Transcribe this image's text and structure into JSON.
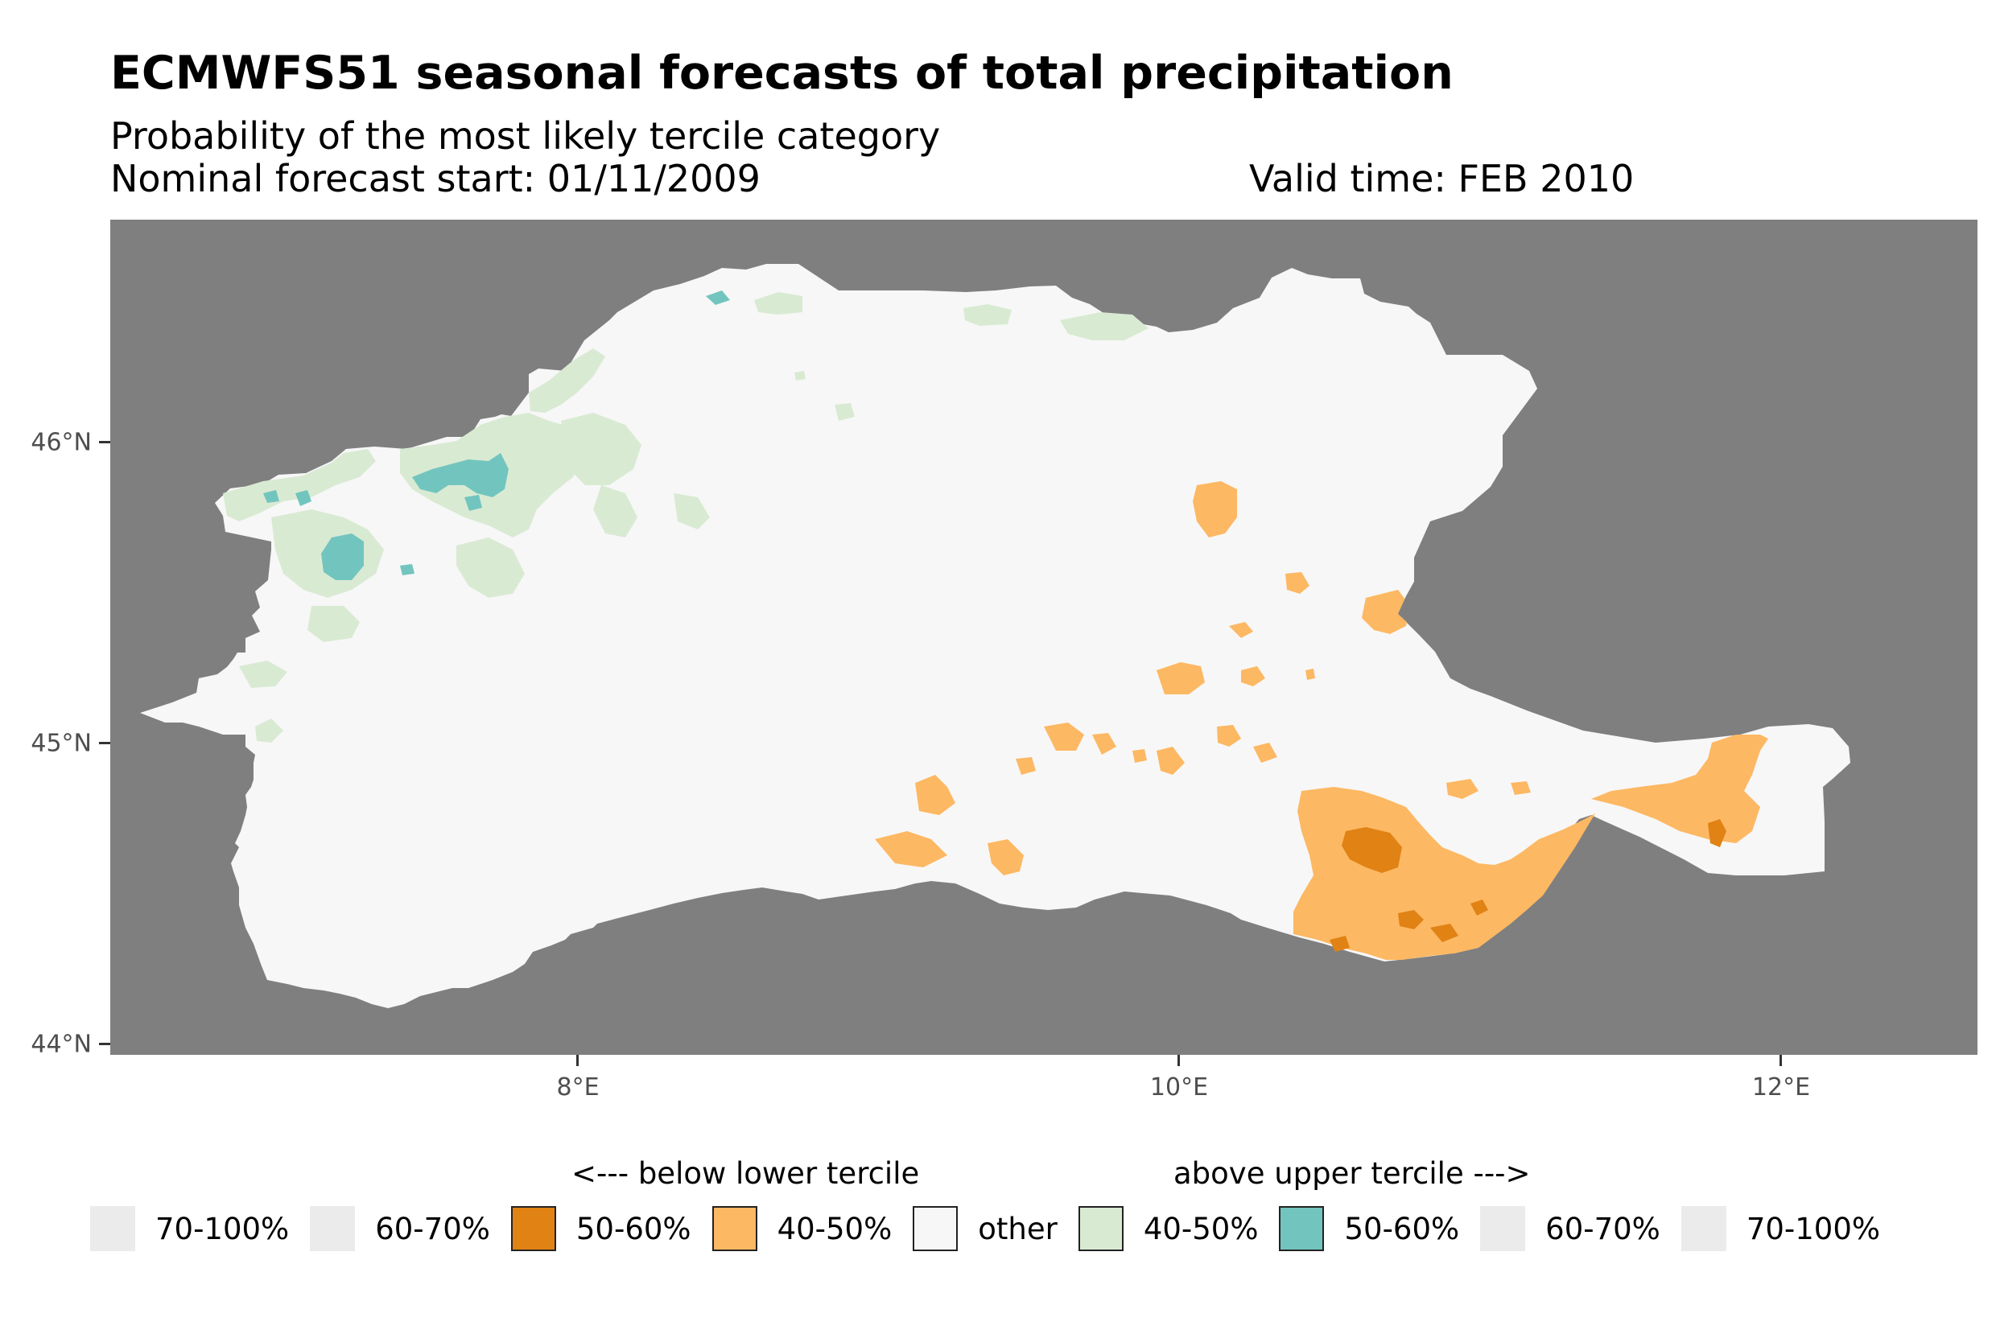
{
  "title": "ECMWFS51 seasonal forecasts of total precipitation",
  "subtitle": "Probability of the most likely tercile category",
  "forecast_start": "Nominal forecast start: 01/11/2009",
  "valid_time": "Valid time: FEB 2010",
  "axes": {
    "y_ticks": [
      "46°N",
      "45°N",
      "44°N"
    ],
    "x_ticks": [
      "8°E",
      "10°E",
      "12°E"
    ],
    "lat_range": [
      43.95,
      46.75
    ],
    "lon_range": [
      6.45,
      12.65
    ]
  },
  "legend": {
    "below_heading": "<--- below lower tercile",
    "above_heading": "above upper tercile --->",
    "items": [
      {
        "label": "70-100%",
        "color": "#ebebeb"
      },
      {
        "label": "60-70%",
        "color": "#ebebeb"
      },
      {
        "label": "50-60%",
        "color": "#e08214"
      },
      {
        "label": "40-50%",
        "color": "#fdb863"
      },
      {
        "label": "other",
        "color": "#f7f7f7"
      },
      {
        "label": "40-50%",
        "color": "#d9ead3"
      },
      {
        "label": "50-60%",
        "color": "#72c5be"
      },
      {
        "label": "60-70%",
        "color": "#ebebeb"
      },
      {
        "label": "70-100%",
        "color": "#ebebeb"
      }
    ]
  },
  "colors": {
    "background": "#7f7f7f",
    "other": "#f7f7f7",
    "below_40_50": "#fdb863",
    "below_50_60": "#e08214",
    "above_40_50": "#d9ead3",
    "above_50_60": "#72c5be"
  }
}
